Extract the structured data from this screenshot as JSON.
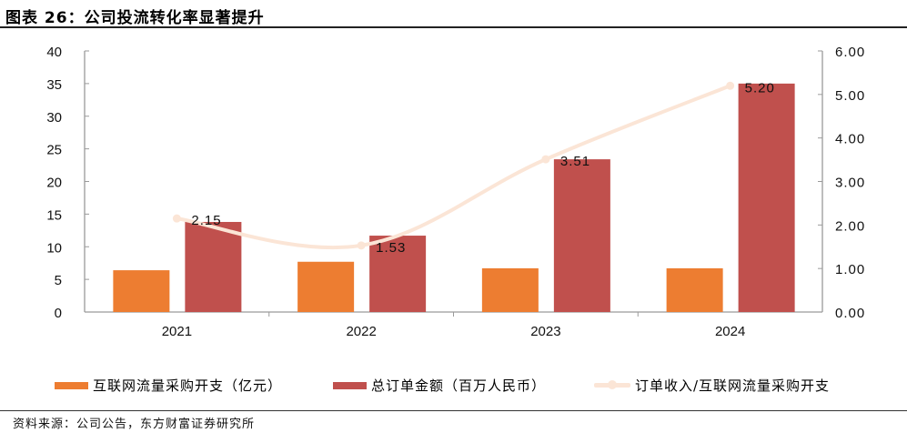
{
  "header": {
    "title": "图表 26：公司投流转化率显著提升"
  },
  "chart_data": {
    "type": "bar",
    "title": "图表 26：公司投流转化率显著提升",
    "categories": [
      "2021",
      "2022",
      "2023",
      "2024"
    ],
    "series": [
      {
        "name": "互联网流量采购开支（亿元）",
        "type": "bar",
        "axis": "left",
        "color": "#ED7D31",
        "values": [
          6.4,
          7.7,
          6.7,
          6.7
        ]
      },
      {
        "name": "总订单金额（百万人民币）",
        "type": "bar",
        "axis": "left",
        "color": "#C0504D",
        "values": [
          13.8,
          11.7,
          23.4,
          35.0
        ]
      },
      {
        "name": "订单收入/互联网流量采购开支",
        "type": "line",
        "axis": "right",
        "color": "#FBE5D6",
        "values": [
          2.15,
          1.53,
          3.51,
          5.2
        ],
        "labels": [
          "2.15",
          "1.53",
          "3.51",
          "5.20"
        ]
      }
    ],
    "y_left": {
      "ylim": [
        0,
        40
      ],
      "ticks": [
        "0",
        "5",
        "10",
        "15",
        "20",
        "25",
        "30",
        "35",
        "40"
      ]
    },
    "y_right": {
      "ylim": [
        0,
        6
      ],
      "ticks": [
        "0.00",
        "1.00",
        "2.00",
        "3.00",
        "4.00",
        "5.00",
        "6.00"
      ]
    },
    "xlabel": "",
    "ylabel": "",
    "grid": false,
    "legend_position": "bottom"
  },
  "legend": [
    {
      "label": "互联网流量采购开支（亿元）",
      "color": "#ED7D31"
    },
    {
      "label": "总订单金额（百万人民币）",
      "color": "#C0504D"
    },
    {
      "label": "订单收入/互联网流量采购开支",
      "color": "#FBE5D6"
    }
  ],
  "footer": {
    "source": "资料来源：公司公告，东方财富证券研究所"
  }
}
